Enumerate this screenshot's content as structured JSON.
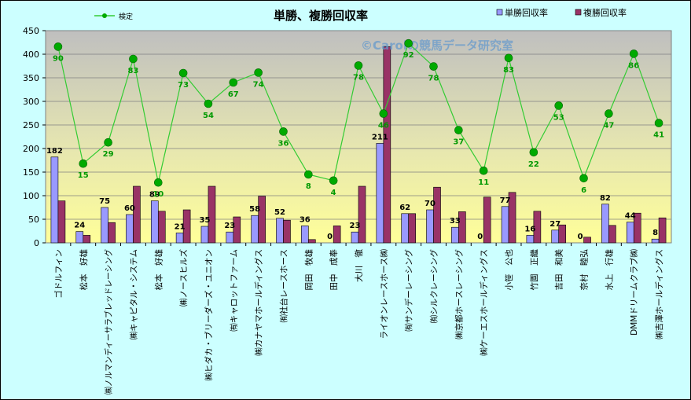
{
  "chart_data": {
    "type": "bar",
    "title": "単勝、複勝回収率",
    "watermark": "©Carolの競馬データ研究室",
    "legend": {
      "line_label": "検定",
      "bar1_label": "単勝回収率",
      "bar2_label": "複勝回収率",
      "placement": "top"
    },
    "ylim": [
      0,
      450
    ],
    "yticks": [
      0,
      50,
      100,
      150,
      200,
      250,
      300,
      350,
      400,
      450
    ],
    "grid": true,
    "colors": {
      "bar1": "#9999FF",
      "bar2": "#993366",
      "line": "#33CC33",
      "marker": "#00AA00",
      "plot_bg_top": "#C0C0C0",
      "plot_bg_bottom": "#FFFF99",
      "label_line": "#009900"
    },
    "categories": [
      "ゴドルフィン",
      "松本　好雄",
      "㈱ノルマンディーサラブレッドレーシング",
      "㈱キャピタル・システム",
      "松本　好雄",
      "㈱ノースヒルズ",
      "㈱ヒダカ・ブリーダーズ・ユニオン",
      "㈲キャロットファーム",
      "㈱カナヤマホールディングス",
      "㈲社台レースホース",
      "岡田　牧雄",
      "田中　成奉",
      "大川　徹",
      "ライオンレースホース㈱",
      "㈲サンデーレーシング",
      "㈲シルクレーシング",
      "㈱京都ホースレーシング",
      "㈱ケーエスホールディングス",
      "小笹　公也",
      "竹園　正繼",
      "吉田　和美",
      "奈村　睦弘",
      "水上　行雄",
      "DMMドリームクラブ㈱",
      "㈱吉澤ホールディングス"
    ],
    "series": [
      {
        "name": "単勝回収率",
        "values": [
          182,
          24,
          75,
          60,
          89,
          21,
          35,
          23,
          58,
          52,
          36,
          0,
          23,
          211,
          62,
          70,
          33,
          0,
          77,
          16,
          27,
          0,
          82,
          44,
          8
        ]
      },
      {
        "name": "複勝回収率",
        "values": [
          89,
          16,
          43,
          120,
          67,
          70,
          120,
          55,
          99,
          48,
          7,
          36,
          120,
          416,
          62,
          118,
          66,
          97,
          107,
          67,
          38,
          12,
          37,
          63,
          53
        ]
      },
      {
        "name": "検定",
        "values": [
          416,
          168,
          213,
          390,
          128,
          360,
          295,
          340,
          361,
          236,
          145,
          132,
          376,
          274,
          423,
          374,
          239,
          153,
          392,
          192,
          291,
          137,
          274,
          401,
          254
        ]
      }
    ],
    "bar1_labels": [
      "182",
      "24",
      "75",
      "60",
      "89",
      "21",
      "35",
      "23",
      "58",
      "52",
      "36",
      "0",
      "23",
      "211",
      "62",
      "70",
      "33",
      "0",
      "77",
      "16",
      "27",
      "0",
      "82",
      "44",
      "8"
    ],
    "line_labels": [
      "90",
      "15",
      "29",
      "83",
      "10",
      "73",
      "54",
      "67",
      "74",
      "36",
      "8",
      "4",
      "78",
      "46",
      "92",
      "78",
      "37",
      "11",
      "83",
      "22",
      "53",
      "6",
      "47",
      "86",
      "41"
    ]
  }
}
